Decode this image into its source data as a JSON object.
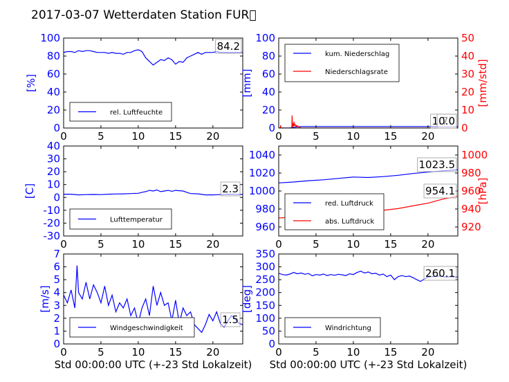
{
  "title": "2017-03-07 Wetterdaten Station FUR\u0000",
  "xlabel": "Std 00:00:00 UTC (+-23 Std Lokalzeit)",
  "colors": {
    "primary": "#0000ff",
    "secondary": "#ff0000",
    "axis": "#000000"
  },
  "chart_data": [
    {
      "type": "line",
      "ylabel": "[%]",
      "xlim": [
        0,
        24
      ],
      "xticks": [
        0,
        5,
        10,
        15,
        20
      ],
      "ylim": [
        0,
        100
      ],
      "yticks": [
        0,
        20,
        40,
        60,
        80,
        100
      ],
      "series": [
        {
          "name": "rel. Luftfeuchte",
          "axis": "left",
          "color": "#0000ff",
          "x": [
            0,
            0.5,
            1,
            1.5,
            2,
            2.5,
            3,
            3.5,
            4,
            4.5,
            5,
            5.5,
            6,
            6.5,
            7,
            7.5,
            8,
            8.5,
            9,
            9.5,
            10,
            10.5,
            11,
            11.5,
            12,
            12.5,
            13,
            13.5,
            14,
            14.5,
            15,
            15.5,
            16,
            16.5,
            17,
            17.5,
            18,
            18.5,
            19,
            19.5,
            20,
            20.5,
            21,
            21.5,
            22,
            22.5,
            23,
            23.5,
            24
          ],
          "y": [
            84,
            85,
            85,
            84,
            86,
            85,
            86,
            86,
            85,
            84,
            84,
            84,
            83,
            84,
            83,
            83,
            82,
            84,
            84,
            86,
            87,
            85,
            78,
            74,
            70,
            73,
            76,
            75,
            78,
            76,
            71,
            74,
            73,
            78,
            80,
            82,
            84,
            82,
            84,
            84,
            84,
            85,
            84,
            84,
            84,
            84,
            84,
            84,
            84
          ]
        }
      ],
      "annotation": "84.2",
      "legend": "lower-left"
    },
    {
      "type": "line",
      "ylabel": "[mm]",
      "ylabel_right": "[mm/std]",
      "xlim": [
        0,
        24
      ],
      "xticks": [
        0,
        5,
        10,
        15,
        20
      ],
      "ylim": [
        0,
        100
      ],
      "yticks": [
        0,
        20,
        40,
        60,
        80,
        100
      ],
      "ylim_right": [
        0,
        50
      ],
      "yticks_right": [
        0,
        10,
        20,
        30,
        40,
        50
      ],
      "series": [
        {
          "name": "kum. Niederschlag",
          "axis": "left",
          "color": "#0000ff",
          "x": [
            0,
            1.5,
            1.8,
            2.2,
            2.6,
            3,
            24
          ],
          "y": [
            0,
            0,
            0.5,
            1.0,
            1.4,
            1.7,
            1.7
          ]
        },
        {
          "name": "Niederschlagsrate",
          "axis": "right",
          "color": "#ff0000",
          "x": [
            0,
            0.2,
            0.25,
            0.3,
            1.6,
            1.75,
            1.8,
            1.85,
            1.9,
            2.0,
            2.05,
            2.1,
            2.2,
            2.3,
            2.4,
            2.5,
            2.6,
            2.8,
            3.0,
            24
          ],
          "y": [
            0,
            0,
            1.5,
            0,
            0,
            0,
            7,
            0.5,
            2.5,
            1.0,
            3.5,
            1.5,
            2.0,
            1.0,
            1.5,
            0.5,
            1.0,
            0.3,
            0,
            0
          ]
        }
      ],
      "annotations": [
        "1.70",
        "0.0"
      ],
      "legend": "upper-left"
    },
    {
      "type": "line",
      "ylabel": "[C]",
      "xlim": [
        0,
        24
      ],
      "xticks": [
        0,
        5,
        10,
        15,
        20
      ],
      "ylim": [
        -30,
        40
      ],
      "yticks": [
        -30,
        -20,
        -10,
        0,
        10,
        20,
        30,
        40
      ],
      "series": [
        {
          "name": "Lufttemperatur",
          "axis": "left",
          "color": "#0000ff",
          "x": [
            0,
            1,
            2,
            3,
            4,
            5,
            6,
            7,
            8,
            9,
            10,
            10.5,
            11,
            11.5,
            12,
            12.5,
            13,
            13.5,
            14,
            14.5,
            15,
            15.5,
            16,
            16.5,
            17,
            18,
            19,
            20,
            21,
            22,
            23,
            24
          ],
          "y": [
            2.5,
            2.5,
            2.0,
            2.2,
            2.3,
            2.2,
            2.5,
            2.7,
            2.8,
            3.0,
            3.2,
            4.0,
            4.5,
            5.5,
            5.0,
            5.8,
            4.5,
            5.0,
            5.5,
            4.8,
            5.5,
            5.2,
            5.0,
            4.0,
            3.0,
            2.8,
            2.0,
            2.0,
            2.2,
            2.5,
            2.4,
            2.3
          ]
        }
      ],
      "annotation": "2.3",
      "legend": "lower-left"
    },
    {
      "type": "line",
      "ylabel_right": "[hPa]",
      "xlim": [
        0,
        24
      ],
      "xticks": [
        0,
        5,
        10,
        15,
        20
      ],
      "ylim": [
        950,
        1050
      ],
      "yticks": [
        960,
        980,
        1000,
        1020,
        1040
      ],
      "ylim_right": [
        910,
        1010
      ],
      "yticks_right": [
        920,
        940,
        960,
        980,
        1000
      ],
      "series": [
        {
          "name": "red. Luftdruck",
          "axis": "left",
          "color": "#0000ff",
          "x": [
            0,
            2,
            4,
            6,
            8,
            10,
            12,
            14,
            16,
            18,
            20,
            22,
            24
          ],
          "y": [
            1009,
            1010,
            1011.5,
            1012.5,
            1014,
            1015.5,
            1015,
            1016,
            1017.5,
            1019.5,
            1021,
            1022.5,
            1023.5
          ]
        },
        {
          "name": "abs. Luftdruck",
          "axis": "right",
          "color": "#ff0000",
          "x": [
            0,
            2,
            4,
            6,
            8,
            10,
            12,
            14,
            16,
            18,
            20,
            22,
            24
          ],
          "y": [
            930,
            931,
            932,
            933,
            934.5,
            936,
            937,
            938.5,
            940.5,
            943.5,
            946.5,
            951,
            954.1
          ]
        }
      ],
      "annotations": [
        "1023.5",
        "954.1"
      ],
      "legend": "lower-left"
    },
    {
      "type": "line",
      "ylabel": "[m/s]",
      "xlim": [
        0,
        24
      ],
      "xticks": [
        0,
        5,
        10,
        15,
        20
      ],
      "ylim": [
        0,
        7
      ],
      "yticks": [
        0,
        1,
        2,
        3,
        4,
        5,
        6,
        7
      ],
      "series": [
        {
          "name": "Windgeschwindigkeit",
          "axis": "left",
          "color": "#0000ff",
          "x": [
            0,
            0.5,
            1,
            1.5,
            1.8,
            2,
            2.5,
            3,
            3.5,
            4,
            4.5,
            5,
            5.5,
            6,
            6.5,
            7,
            7.5,
            8,
            8.5,
            9,
            9.5,
            10,
            10.5,
            11,
            11.5,
            12,
            12.5,
            13,
            13.5,
            14,
            14.5,
            15,
            15.5,
            16,
            16.5,
            17,
            17.5,
            18,
            18.5,
            19,
            19.5,
            20,
            20.5,
            21,
            21.5,
            22,
            22.5,
            23,
            23.5,
            24
          ],
          "y": [
            3.8,
            3.2,
            4.2,
            2.8,
            6.1,
            4.0,
            3.5,
            4.8,
            3.5,
            4.6,
            4.0,
            3.2,
            4.5,
            3.0,
            3.8,
            2.5,
            3.2,
            2.8,
            3.5,
            2.2,
            2.8,
            1.6,
            2.8,
            3.5,
            2.2,
            4.5,
            3.0,
            4.0,
            3.0,
            3.2,
            1.8,
            3.4,
            1.6,
            2.8,
            2.2,
            2.5,
            1.5,
            1.2,
            0.9,
            1.5,
            2.3,
            1.8,
            2.5,
            1.6,
            1.3,
            1.8,
            2.2,
            1.9,
            1.6,
            1.5
          ]
        }
      ],
      "annotation": "1.5",
      "legend": "lower-center"
    },
    {
      "type": "line",
      "ylabel": "[deg]",
      "xlim": [
        0,
        24
      ],
      "xticks": [
        0,
        5,
        10,
        15,
        20
      ],
      "ylim": [
        0,
        350
      ],
      "yticks": [
        0,
        50,
        100,
        150,
        200,
        250,
        300,
        350
      ],
      "series": [
        {
          "name": "Windrichtung",
          "axis": "left",
          "color": "#0000ff",
          "x": [
            0,
            0.5,
            1,
            1.5,
            2,
            2.5,
            3,
            3.5,
            4,
            4.5,
            5,
            5.5,
            6,
            6.5,
            7,
            7.5,
            8,
            8.5,
            9,
            9.5,
            10,
            10.5,
            11,
            11.5,
            12,
            12.5,
            13,
            13.5,
            14,
            14.5,
            15,
            15.5,
            16,
            16.5,
            17,
            17.5,
            18,
            18.5,
            19,
            19.5,
            20,
            20.5,
            21,
            21.5,
            22,
            22.5,
            23,
            23.5,
            24
          ],
          "y": [
            275,
            270,
            268,
            272,
            278,
            273,
            276,
            271,
            274,
            265,
            270,
            268,
            272,
            266,
            270,
            267,
            271,
            269,
            266,
            273,
            270,
            278,
            283,
            276,
            280,
            273,
            275,
            268,
            272,
            262,
            268,
            250,
            262,
            266,
            262,
            264,
            258,
            250,
            243,
            252,
            260,
            262,
            262,
            264,
            262,
            260,
            262,
            261,
            260
          ]
        }
      ],
      "annotation": "260.1",
      "legend": "lower-left"
    }
  ]
}
